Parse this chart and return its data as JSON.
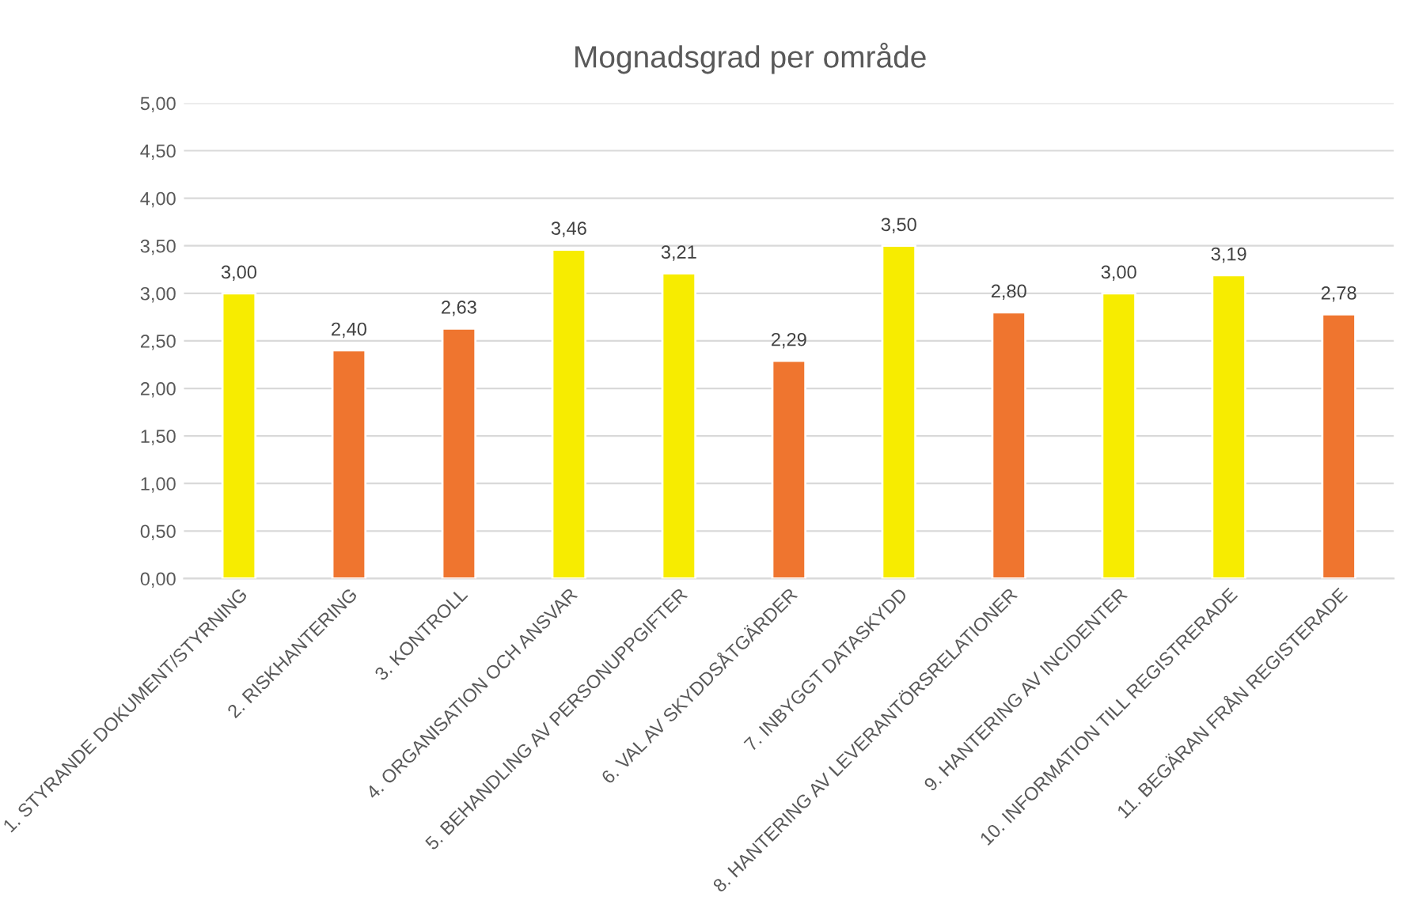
{
  "chart_data": {
    "type": "bar",
    "title": "Mognadsgrad per område",
    "categories": [
      "1. STYRANDE DOKUMENT/STYRNING",
      "2. RISKHANTERING",
      "3. KONTROLL",
      "4. ORGANISATION OCH ANSVAR",
      "5. BEHANDLING AV PERSONUPPGIFTER",
      "6. VAL AV SKYDDSÅTGÄRDER",
      "7. INBYGGT DATASKYDD",
      "8. HANTERING AV LEVERANTÖRSRELATIONER",
      "9. HANTERING AV INCIDENTER",
      "10. INFORMATION TILL REGISTRERADE",
      "11. BEGÄRAN FRÅN REGISTERADE"
    ],
    "values": [
      3.0,
      2.4,
      2.63,
      3.46,
      3.21,
      2.29,
      3.5,
      2.8,
      3.0,
      3.19,
      2.78
    ],
    "colors": [
      "#f7ec00",
      "#ef752f",
      "#ef752f",
      "#f7ec00",
      "#f7ec00",
      "#ef752f",
      "#f7ec00",
      "#ef752f",
      "#f7ec00",
      "#f7ec00",
      "#ef752f"
    ],
    "value_labels": [
      "3,00",
      "2,40",
      "2,63",
      "3,46",
      "3,21",
      "2,29",
      "3,50",
      "2,80",
      "3,00",
      "3,19",
      "2,78"
    ],
    "ylim": [
      0,
      5
    ],
    "yticks": [
      {
        "value": 0,
        "label": "0,00"
      },
      {
        "value": 0.5,
        "label": "0,50"
      },
      {
        "value": 1,
        "label": "1,00"
      },
      {
        "value": 1.5,
        "label": "1,50"
      },
      {
        "value": 2,
        "label": "2,00"
      },
      {
        "value": 2.5,
        "label": "2,50"
      },
      {
        "value": 3,
        "label": "3,00"
      },
      {
        "value": 3.5,
        "label": "3,50"
      },
      {
        "value": 4,
        "label": "4,00"
      },
      {
        "value": 4.5,
        "label": "4,50"
      },
      {
        "value": 5,
        "label": "5,00"
      }
    ],
    "grid": "y"
  }
}
